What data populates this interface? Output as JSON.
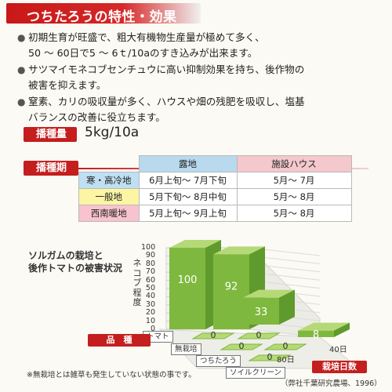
{
  "header": {
    "title": "つちたろうの特性・効果"
  },
  "features": [
    {
      "mark": "●",
      "lines": [
        "初期生育が旺盛で、粗大有機物生産量が極めて多く、",
        "50 ～ 60日で5 ～ 6ｔ/10aのすき込みが出来ます。"
      ]
    },
    {
      "mark": "●",
      "lines": [
        "サツマイモネコブセンチュウに高い抑制効果を持ち、後作物の",
        "被害を抑えます。"
      ]
    },
    {
      "mark": "●",
      "lines": [
        "窒素、カリの吸収量が多く、ハウスや畑の残肥を吸収し、塩基",
        "バランスの改善に役立ちます。"
      ]
    }
  ],
  "sowing_rate": {
    "label": "播種量",
    "value": "5kg/10a"
  },
  "sowing_period": {
    "label": "播種期",
    "columns": [
      "露地",
      "施設ハウス"
    ],
    "rows": [
      {
        "region": "寒・高冷地",
        "open_field": "6月上旬～ 7月下旬",
        "greenhouse": "5月～ 7月"
      },
      {
        "region": "一般地",
        "open_field": "5月下旬～ 8月中旬",
        "greenhouse": "5月～ 8月"
      },
      {
        "region": "西南暖地",
        "open_field": "5月上旬～ 9月上旬",
        "greenhouse": "5月～ 8月"
      }
    ]
  },
  "chart_data": {
    "type": "bar",
    "title": "ソルガムの栽培と\n後作トマトの被害状況",
    "ylabel": "ネコブ程度",
    "ylim": [
      0,
      100
    ],
    "y_ticks": [
      0,
      10,
      20,
      30,
      40,
      50,
      60,
      70,
      80,
      90,
      100
    ],
    "depth_axis_label": "品　種",
    "x_axis_label": "栽培日数",
    "x_ticks": [
      "40日",
      "80日"
    ],
    "series": [
      {
        "name": "トマト",
        "values": [
          100,
          92,
          33,
          8
        ]
      },
      {
        "name": "無栽培",
        "values": [
          0,
          0,
          0,
          0
        ]
      },
      {
        "name": "つちたろう",
        "values": [
          0,
          0,
          0,
          0
        ]
      },
      {
        "name": "ソイルクリーン",
        "values": [
          0,
          0,
          0,
          0
        ]
      }
    ]
  },
  "footnote": "※無栽培とは雑草も発生していない状態の事です。",
  "source": "（弊社千葉研究農場、1996）"
}
